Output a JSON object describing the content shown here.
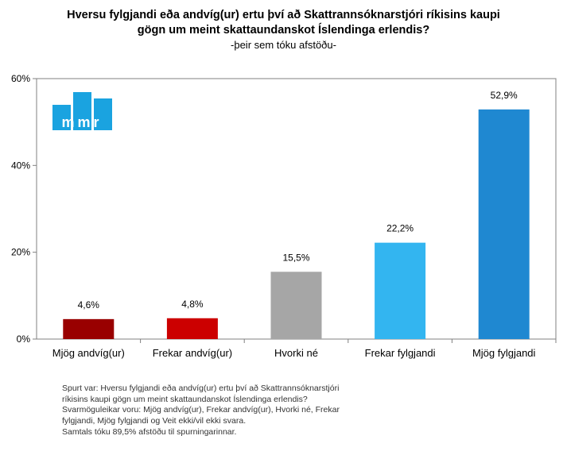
{
  "chart_data": {
    "type": "bar",
    "title_lines": [
      "Hversu fylgjandi eða andvíg(ur) ertu því að Skattrannsóknarstjóri ríkisins kaupi",
      "gögn um meint skattaundanskot Íslendinga erlendis?"
    ],
    "subtitle": "-þeir sem tóku afstöðu-",
    "categories": [
      "Mjög andvíg(ur)",
      "Frekar andvíg(ur)",
      "Hvorki né",
      "Frekar fylgjandi",
      "Mjög fylgjandi"
    ],
    "values": [
      4.6,
      4.8,
      15.5,
      22.2,
      52.9
    ],
    "value_labels": [
      "4,6%",
      "4,8%",
      "15,5%",
      "22,2%",
      "52,9%"
    ],
    "colors": [
      "#990000",
      "#cc0000",
      "#a6a6a6",
      "#33b5f0",
      "#1f88d1"
    ],
    "ylim": [
      0,
      60
    ],
    "yticks": [
      0,
      20,
      40,
      60
    ],
    "ytick_labels": [
      "0%",
      "20%",
      "40%",
      "60%"
    ],
    "grid": false,
    "legend": "none"
  },
  "logo": {
    "text": "mmr",
    "color": "#1aa3e0"
  },
  "footnote": [
    "Spurt var: Hversu fylgjandi eða andvíg(ur) ertu því að Skattrannsóknarstjóri",
    "ríkisins kaupi gögn um meint skattaundanskot Íslendinga erlendis?",
    "Svarmöguleikar voru: Mjög andvíg(ur), Frekar andvíg(ur), Hvorki né, Frekar",
    "fylgjandi, Mjög fylgjandi og Veit ekki/vil ekki svara.",
    "Samtals tóku 89,5% afstöðu til spurningarinnar."
  ]
}
